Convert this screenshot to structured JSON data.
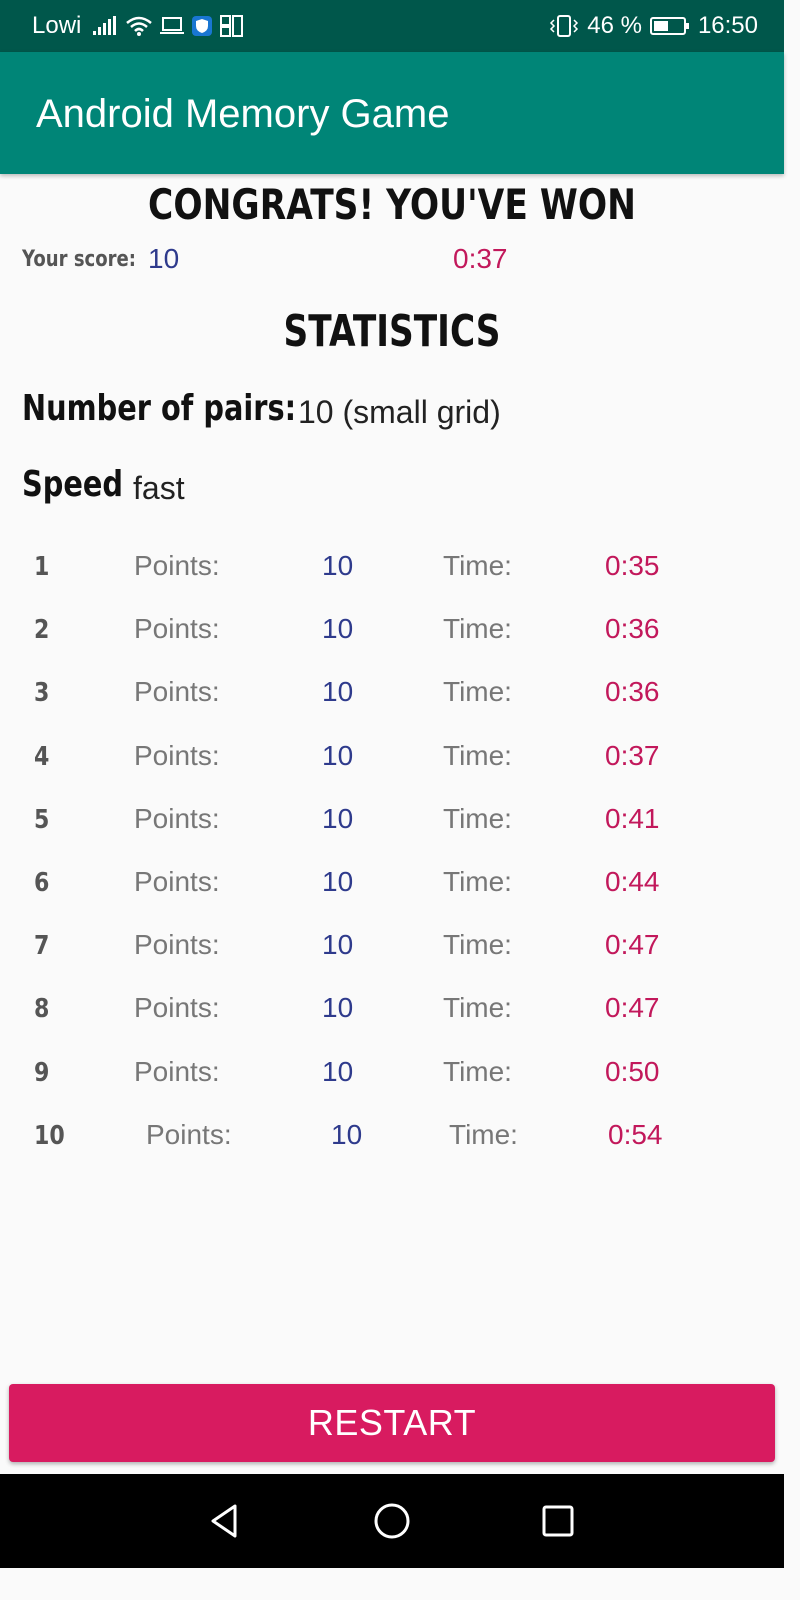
{
  "status_bar": {
    "carrier": "Lowi",
    "battery": "46 %",
    "time": "16:50",
    "icons": [
      "signal-icon",
      "wifi-icon",
      "laptop-icon",
      "shield-icon",
      "sim-icon",
      "vibrate-icon",
      "battery-icon"
    ]
  },
  "app_bar": {
    "title": "Android Memory Game",
    "color": "#008577"
  },
  "result": {
    "heading": "CONGRATS! YOU'VE WON",
    "score_label": "Your score:",
    "score": "10",
    "time": "0:37"
  },
  "statistics": {
    "heading": "STATISTICS",
    "pairs_label": "Number of pairs:",
    "pairs_value": "10 (small grid)",
    "speed_label": "Speed",
    "speed_value": "fast",
    "rows": [
      {
        "rank": "1",
        "points_label": "Points:",
        "points": "10",
        "time_label": "Time:",
        "time": "0:35"
      },
      {
        "rank": "2",
        "points_label": "Points:",
        "points": "10",
        "time_label": "Time:",
        "time": "0:36"
      },
      {
        "rank": "3",
        "points_label": "Points:",
        "points": "10",
        "time_label": "Time:",
        "time": "0:36"
      },
      {
        "rank": "4",
        "points_label": "Points:",
        "points": "10",
        "time_label": "Time:",
        "time": "0:37"
      },
      {
        "rank": "5",
        "points_label": "Points:",
        "points": "10",
        "time_label": "Time:",
        "time": "0:41"
      },
      {
        "rank": "6",
        "points_label": "Points:",
        "points": "10",
        "time_label": "Time:",
        "time": "0:44"
      },
      {
        "rank": "7",
        "points_label": "Points:",
        "points": "10",
        "time_label": "Time:",
        "time": "0:47"
      },
      {
        "rank": "8",
        "points_label": "Points:",
        "points": "10",
        "time_label": "Time:",
        "time": "0:47"
      },
      {
        "rank": "9",
        "points_label": "Points:",
        "points": "10",
        "time_label": "Time:",
        "time": "0:50"
      },
      {
        "rank": "10",
        "points_label": "Points:",
        "points": "10",
        "time_label": "Time:",
        "time": "0:54"
      }
    ]
  },
  "restart": {
    "label": "RESTART",
    "color": "#d81b60"
  },
  "nav_bar": {
    "icons": [
      "back-icon",
      "home-icon",
      "recents-icon"
    ]
  }
}
